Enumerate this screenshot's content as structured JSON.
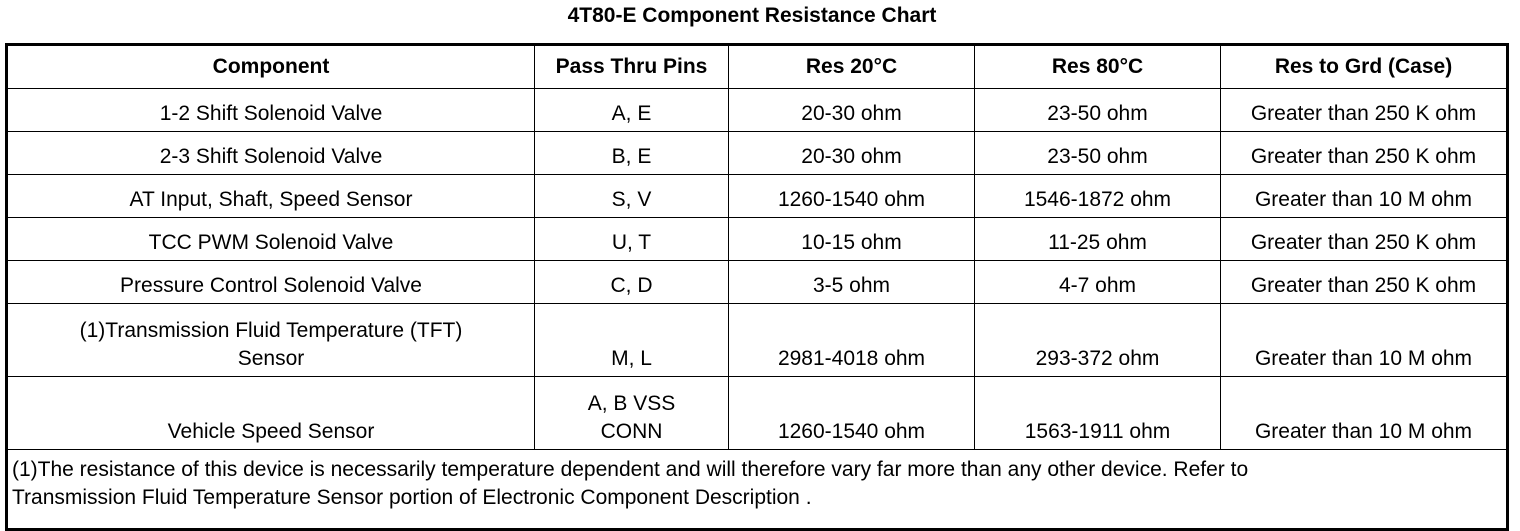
{
  "title": "4T80-E Component Resistance Chart",
  "columns": [
    "Component",
    "Pass Thru Pins",
    "Res 20°C",
    "Res 80°C",
    "Res to Grd (Case)"
  ],
  "rows": [
    {
      "component": [
        "1-2 Shift Solenoid Valve"
      ],
      "pins": [
        "A, E"
      ],
      "res20": "20-30 ohm",
      "res80": "23-50 ohm",
      "grd": "Greater than 250 K ohm"
    },
    {
      "component": [
        "2-3 Shift Solenoid Valve"
      ],
      "pins": [
        "B, E"
      ],
      "res20": "20-30 ohm",
      "res80": "23-50 ohm",
      "grd": "Greater than 250 K ohm"
    },
    {
      "component": [
        "AT Input, Shaft, Speed Sensor"
      ],
      "pins": [
        "S, V"
      ],
      "res20": "1260-1540 ohm",
      "res80": "1546-1872 ohm",
      "grd": "Greater than 10 M ohm"
    },
    {
      "component": [
        "TCC PWM Solenoid Valve"
      ],
      "pins": [
        "U, T"
      ],
      "res20": "10-15 ohm",
      "res80": "11-25 ohm",
      "grd": "Greater than 250 K ohm"
    },
    {
      "component": [
        "Pressure Control Solenoid Valve"
      ],
      "pins": [
        "C, D"
      ],
      "res20": "3-5 ohm",
      "res80": "4-7 ohm",
      "grd": "Greater than 250 K ohm"
    },
    {
      "component": [
        "(1)Transmission Fluid Temperature (TFT)",
        "Sensor"
      ],
      "pins": [
        "M, L"
      ],
      "res20": "2981-4018 ohm",
      "res80": "293-372 ohm",
      "grd": "Greater than 10 M ohm"
    },
    {
      "component": [
        "Vehicle Speed Sensor"
      ],
      "pins": [
        "A, B VSS",
        "CONN"
      ],
      "res20": "1260-1540 ohm",
      "res80": "1563-1911 ohm",
      "grd": "Greater than 10 M ohm"
    }
  ],
  "footnote": [
    "(1)The resistance of this device is necessarily temperature dependent and will therefore vary far more than any other device. Refer to",
    "Transmission Fluid Temperature Sensor portion of Electronic Component Description ."
  ]
}
